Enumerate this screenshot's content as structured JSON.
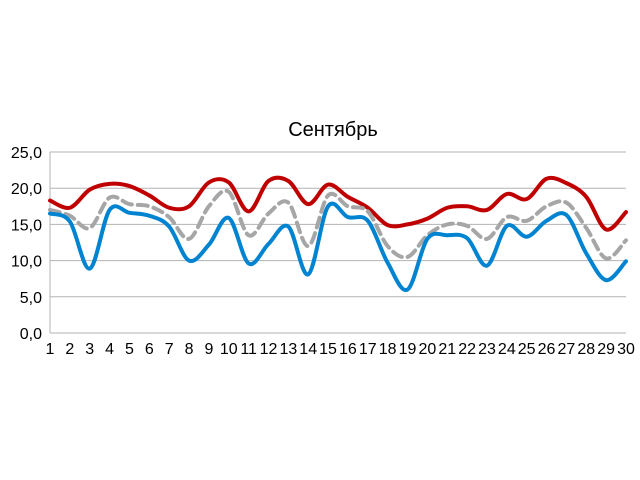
{
  "chart_data": {
    "type": "line",
    "title": "Сентябрь",
    "xlabel": "",
    "ylabel": "",
    "ylim": [
      0,
      25
    ],
    "yticks": [
      "0,0",
      "5,0",
      "10,0",
      "15,0",
      "20,0",
      "25,0"
    ],
    "ytick_values": [
      0,
      5,
      10,
      15,
      20,
      25
    ],
    "categories": [
      "1",
      "2",
      "3",
      "4",
      "5",
      "6",
      "7",
      "8",
      "9",
      "10",
      "11",
      "12",
      "13",
      "14",
      "15",
      "16",
      "17",
      "18",
      "19",
      "20",
      "21",
      "22",
      "23",
      "24",
      "25",
      "26",
      "27",
      "28",
      "29",
      "30"
    ],
    "grid": true,
    "legend": "none",
    "series": [
      {
        "color": "#c00000",
        "style": "solid",
        "values": [
          18.3,
          17.3,
          19.8,
          20.6,
          20.3,
          19.0,
          17.3,
          17.5,
          20.8,
          20.8,
          16.8,
          21.0,
          21.0,
          17.8,
          20.5,
          18.8,
          17.3,
          14.9,
          15.0,
          15.8,
          17.3,
          17.5,
          17.0,
          19.2,
          18.5,
          21.3,
          20.7,
          18.8,
          14.3,
          16.7
        ]
      },
      {
        "color": "#a6a6a6",
        "style": "dashed",
        "values": [
          17.0,
          16.2,
          14.5,
          18.7,
          17.8,
          17.5,
          16.0,
          13.0,
          17.5,
          19.5,
          13.5,
          16.5,
          18.0,
          12.0,
          19.0,
          17.5,
          16.8,
          12.0,
          10.5,
          13.5,
          15.0,
          14.8,
          13.0,
          16.0,
          15.5,
          17.5,
          18.0,
          14.5,
          10.3,
          12.8
        ]
      },
      {
        "color": "#0084d1",
        "style": "solid",
        "values": [
          16.5,
          15.4,
          8.9,
          17.0,
          16.6,
          16.2,
          14.7,
          10.0,
          12.2,
          15.9,
          9.6,
          12.3,
          14.7,
          8.1,
          17.5,
          16.0,
          15.5,
          9.7,
          6.0,
          13.0,
          13.5,
          13.1,
          9.3,
          14.8,
          13.3,
          15.5,
          16.3,
          11.0,
          7.3,
          9.9
        ]
      }
    ]
  }
}
